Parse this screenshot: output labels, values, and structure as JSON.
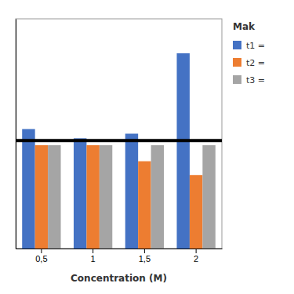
{
  "chart_data": {
    "type": "bar",
    "categories": [
      "0,5",
      "1",
      "1,5",
      "2"
    ],
    "series": [
      {
        "name": "t1 =",
        "color": "#4472C4",
        "values": [
          5.2,
          4.8,
          5.0,
          8.5
        ]
      },
      {
        "name": "t2 =",
        "color": "#ED7D31",
        "values": [
          4.5,
          4.5,
          3.8,
          3.2
        ]
      },
      {
        "name": "t3 =",
        "color": "#A5A5A5",
        "values": [
          4.5,
          4.5,
          4.5,
          4.5
        ]
      }
    ],
    "xlabel": "Concentration (M)",
    "ylim": [
      0,
      10
    ],
    "yticks": [],
    "tick_labels": "x",
    "legend": "right",
    "legend_title": "Mak",
    "reference_line": {
      "value": 4.7,
      "color": "#000000"
    }
  }
}
